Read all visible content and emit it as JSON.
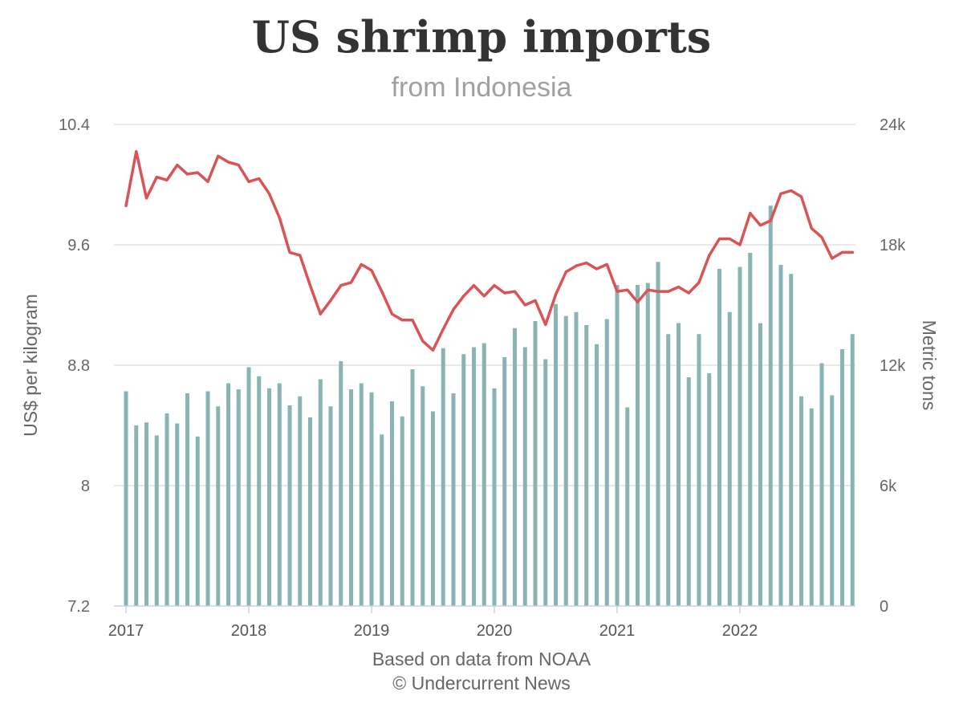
{
  "chart_data": {
    "type": "bar+line",
    "title": "US shrimp imports",
    "subtitle": "from Indonesia",
    "credit": [
      "Based on data from NOAA",
      "© Undercurrent News"
    ],
    "x_tick_labels": [
      "2017",
      "2018",
      "2019",
      "2020",
      "2021",
      "2022"
    ],
    "left_axis": {
      "label": "US$ per kilogram",
      "ylim": [
        7.2,
        10.4
      ],
      "ticks": [
        7.2,
        8,
        8.8,
        9.6,
        10.4
      ],
      "tick_labels": [
        "7.2",
        "8",
        "8.8",
        "9.6",
        "10.4"
      ]
    },
    "right_axis": {
      "label": "Metric tons",
      "ylim": [
        0,
        24000
      ],
      "ticks": [
        0,
        6000,
        12000,
        18000,
        24000
      ],
      "tick_labels": [
        "0",
        "6k",
        "12k",
        "18k",
        "24k"
      ]
    },
    "grid": true,
    "colors": {
      "bars": "#8ab4b4",
      "line": "#d95555",
      "grid": "#e2e2e2",
      "axis": "#c5d4e3"
    },
    "series": [
      {
        "axis": "right",
        "type": "bar",
        "values": [
          10700,
          9000,
          9150,
          8500,
          9600,
          9100,
          10600,
          8450,
          10700,
          9950,
          11100,
          10800,
          11900,
          11450,
          10850,
          11100,
          10000,
          10450,
          9400,
          11300,
          9950,
          12200,
          10800,
          11100,
          10650,
          8550,
          10200,
          9450,
          11800,
          10950,
          9700,
          12850,
          10600,
          12550,
          12900,
          13100,
          10850,
          12400,
          13850,
          12900,
          14200,
          12300,
          15050,
          14450,
          14650,
          14000,
          13050,
          14300,
          16000,
          9900,
          16000,
          16100,
          17150,
          13550,
          14100,
          11400,
          13550,
          11600,
          16800,
          14650,
          16900,
          17600,
          14100,
          19950,
          17000,
          16550,
          10450,
          9850,
          12100,
          10500,
          12800,
          13550
        ]
      },
      {
        "axis": "left",
        "type": "line",
        "values": [
          9.86,
          10.22,
          9.91,
          10.05,
          10.03,
          10.13,
          10.07,
          10.08,
          10.02,
          10.19,
          10.15,
          10.13,
          10.02,
          10.04,
          9.94,
          9.78,
          9.55,
          9.53,
          9.33,
          9.14,
          9.23,
          9.33,
          9.35,
          9.47,
          9.43,
          9.29,
          9.14,
          9.1,
          9.1,
          8.96,
          8.9,
          9.04,
          9.17,
          9.26,
          9.33,
          9.26,
          9.33,
          9.28,
          9.29,
          9.2,
          9.23,
          9.07,
          9.27,
          9.42,
          9.46,
          9.48,
          9.44,
          9.47,
          9.29,
          9.3,
          9.22,
          9.3,
          9.29,
          9.29,
          9.32,
          9.28,
          9.35,
          9.53,
          9.64,
          9.64,
          9.6,
          9.81,
          9.73,
          9.76,
          9.94,
          9.96,
          9.92,
          9.71,
          9.65,
          9.51,
          9.55,
          9.55
        ]
      }
    ]
  }
}
